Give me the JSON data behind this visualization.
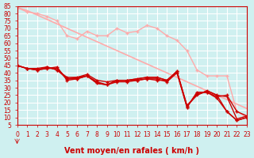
{
  "background_color": "#cff0f0",
  "grid_color": "#ffffff",
  "xlabel": "Vent moyen/en rafales ( km/h )",
  "xlabel_color": "#cc0000",
  "xlabel_fontsize": 7,
  "xtick_fontsize": 5.5,
  "ytick_fontsize": 5.5,
  "tick_color": "#cc0000",
  "xmin": 0,
  "xmax": 23,
  "ymin": 5,
  "ymax": 85,
  "yticks": [
    5,
    10,
    15,
    20,
    25,
    30,
    35,
    40,
    45,
    50,
    55,
    60,
    65,
    70,
    75,
    80,
    85
  ],
  "xticks": [
    0,
    1,
    2,
    3,
    4,
    5,
    6,
    7,
    8,
    9,
    10,
    11,
    12,
    13,
    14,
    15,
    16,
    17,
    18,
    19,
    20,
    21,
    22,
    23
  ],
  "lines": [
    {
      "x": [
        0,
        1,
        2,
        3,
        4,
        5,
        6,
        7,
        8,
        9,
        10,
        11,
        12,
        13,
        14,
        15,
        16,
        17,
        18,
        19,
        20,
        21,
        22,
        23
      ],
      "y": [
        84,
        81,
        80,
        78,
        75,
        65,
        63,
        68,
        65,
        65,
        70,
        67,
        68,
        72,
        70,
        65,
        62,
        55,
        42,
        38,
        38,
        38,
        14,
        10
      ],
      "color": "#ffaaaa",
      "linewidth": 1.0,
      "marker": "+",
      "markersize": 3
    },
    {
      "x": [
        0,
        1,
        2,
        3,
        4,
        5,
        6,
        7,
        8,
        9,
        10,
        11,
        12,
        13,
        14,
        15,
        16,
        17,
        18,
        19,
        20,
        21,
        22,
        23
      ],
      "y": [
        84,
        82,
        79,
        76,
        73,
        70,
        67,
        64,
        61,
        58,
        55,
        52,
        49,
        46,
        43,
        40,
        37,
        34,
        31,
        28,
        25,
        22,
        19,
        16
      ],
      "color": "#ffaaaa",
      "linewidth": 1.2,
      "marker": null,
      "markersize": 0
    },
    {
      "x": [
        0,
        1,
        2,
        3,
        4,
        5,
        6,
        7,
        8,
        9,
        10,
        11,
        12,
        13,
        14,
        15,
        16,
        17,
        18,
        19,
        20,
        21,
        22,
        23
      ],
      "y": [
        45,
        43,
        42,
        43,
        44,
        35,
        36,
        38,
        33,
        32,
        35,
        35,
        36,
        37,
        37,
        35,
        41,
        18,
        25,
        28,
        25,
        14,
        8,
        10
      ],
      "color": "#cc0000",
      "linewidth": 1.0,
      "marker": "+",
      "markersize": 3
    },
    {
      "x": [
        0,
        1,
        2,
        3,
        4,
        5,
        6,
        7,
        8,
        9,
        10,
        11,
        12,
        13,
        14,
        15,
        16,
        17,
        18,
        19,
        20,
        21,
        22,
        23
      ],
      "y": [
        45,
        43,
        43,
        44,
        42,
        37,
        37,
        39,
        35,
        34,
        35,
        35,
        35,
        36,
        35,
        35,
        41,
        17,
        27,
        27,
        24,
        25,
        14,
        11
      ],
      "color": "#cc0000",
      "linewidth": 1.0,
      "marker": "+",
      "markersize": 3
    },
    {
      "x": [
        0,
        1,
        2,
        3,
        4,
        5,
        6,
        7,
        8,
        9,
        10,
        11,
        12,
        13,
        14,
        15,
        16,
        17,
        18,
        19,
        20,
        21,
        22,
        23
      ],
      "y": [
        45,
        43,
        42,
        44,
        42,
        36,
        36,
        38,
        34,
        32,
        34,
        34,
        35,
        36,
        36,
        34,
        40,
        17,
        26,
        27,
        23,
        14,
        8,
        10
      ],
      "color": "#cc0000",
      "linewidth": 1.0,
      "marker": "+",
      "markersize": 3
    },
    {
      "x": [
        0,
        1,
        2,
        3,
        4,
        5,
        6,
        7,
        8,
        9,
        10,
        11,
        12,
        13,
        14,
        15,
        16,
        17,
        18,
        19,
        20,
        21,
        22,
        23
      ],
      "y": [
        45,
        43,
        42,
        43,
        43,
        36,
        37,
        38,
        33,
        32,
        35,
        35,
        36,
        37,
        37,
        35,
        41,
        18,
        25,
        28,
        25,
        24,
        9,
        11
      ],
      "color": "#cc0000",
      "linewidth": 1.0,
      "marker": "None",
      "markersize": 0
    }
  ],
  "arrow_color": "#cc0000",
  "spine_color": "#cc0000"
}
